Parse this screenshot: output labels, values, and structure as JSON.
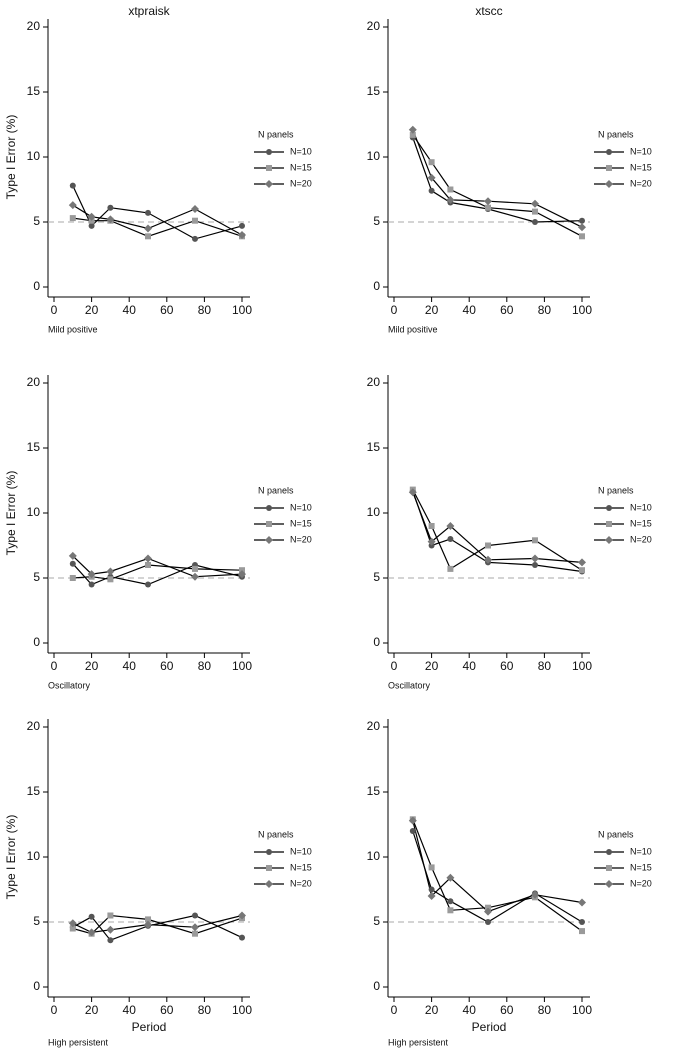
{
  "chart_data": [
    {
      "type": "line",
      "title": "xtpraisk",
      "ylabel": "Type I Error (%)",
      "note": "Mild positive",
      "legend_title": "N panels",
      "x": [
        10,
        20,
        30,
        50,
        75,
        100
      ],
      "xlim": [
        0,
        100
      ],
      "xticks": [
        0,
        20,
        40,
        60,
        80,
        100
      ],
      "ylim": [
        0,
        20
      ],
      "yticks": [
        0,
        5,
        10,
        15,
        20
      ],
      "reference_line": 5,
      "series": [
        {
          "name": "N=10",
          "color": "#555555",
          "marker": "circle",
          "values": [
            7.8,
            4.7,
            6.1,
            5.7,
            3.7,
            4.7
          ]
        },
        {
          "name": "N=15",
          "color": "#9a9a9a",
          "marker": "square",
          "values": [
            5.3,
            5.1,
            5.1,
            3.9,
            5.1,
            3.9
          ]
        },
        {
          "name": "N=20",
          "color": "#777777",
          "marker": "diamond",
          "values": [
            6.3,
            5.4,
            5.2,
            4.5,
            6.0,
            4.0
          ]
        }
      ]
    },
    {
      "type": "line",
      "title": "xtscc",
      "note": "Mild positive",
      "legend_title": "N panels",
      "x": [
        10,
        20,
        30,
        50,
        75,
        100
      ],
      "xlim": [
        0,
        100
      ],
      "xticks": [
        0,
        20,
        40,
        60,
        80,
        100
      ],
      "ylim": [
        0,
        20
      ],
      "yticks": [
        0,
        5,
        10,
        15,
        20
      ],
      "reference_line": 5,
      "series": [
        {
          "name": "N=10",
          "color": "#555555",
          "marker": "circle",
          "values": [
            11.5,
            7.4,
            6.5,
            6.0,
            5.0,
            5.1
          ]
        },
        {
          "name": "N=15",
          "color": "#9a9a9a",
          "marker": "square",
          "values": [
            11.7,
            9.6,
            7.5,
            6.1,
            5.8,
            3.9
          ]
        },
        {
          "name": "N=20",
          "color": "#777777",
          "marker": "diamond",
          "values": [
            12.1,
            8.4,
            6.7,
            6.6,
            6.4,
            4.6
          ]
        }
      ]
    },
    {
      "type": "line",
      "ylabel": "Type I Error (%)",
      "note": "Oscillatory",
      "legend_title": "N panels",
      "x": [
        10,
        20,
        30,
        50,
        75,
        100
      ],
      "xlim": [
        0,
        100
      ],
      "xticks": [
        0,
        20,
        40,
        60,
        80,
        100
      ],
      "ylim": [
        0,
        20
      ],
      "yticks": [
        0,
        5,
        10,
        15,
        20
      ],
      "reference_line": 5,
      "series": [
        {
          "name": "N=10",
          "color": "#555555",
          "marker": "circle",
          "values": [
            6.1,
            4.5,
            5.1,
            4.5,
            6.0,
            5.1
          ]
        },
        {
          "name": "N=15",
          "color": "#9a9a9a",
          "marker": "square",
          "values": [
            5.0,
            5.1,
            4.9,
            6.0,
            5.7,
            5.6
          ]
        },
        {
          "name": "N=20",
          "color": "#777777",
          "marker": "diamond",
          "values": [
            6.7,
            5.3,
            5.5,
            6.5,
            5.1,
            5.3
          ]
        }
      ]
    },
    {
      "type": "line",
      "note": "Oscillatory",
      "legend_title": "N panels",
      "x": [
        10,
        20,
        30,
        50,
        75,
        100
      ],
      "xlim": [
        0,
        100
      ],
      "xticks": [
        0,
        20,
        40,
        60,
        80,
        100
      ],
      "ylim": [
        0,
        20
      ],
      "yticks": [
        0,
        5,
        10,
        15,
        20
      ],
      "reference_line": 5,
      "series": [
        {
          "name": "N=10",
          "color": "#555555",
          "marker": "circle",
          "values": [
            11.7,
            7.5,
            8.0,
            6.2,
            6.0,
            5.5
          ]
        },
        {
          "name": "N=15",
          "color": "#9a9a9a",
          "marker": "square",
          "values": [
            11.8,
            9.0,
            5.7,
            7.5,
            7.9,
            5.6
          ]
        },
        {
          "name": "N=20",
          "color": "#777777",
          "marker": "diamond",
          "values": [
            11.6,
            7.8,
            9.0,
            6.4,
            6.5,
            6.2
          ]
        }
      ]
    },
    {
      "type": "line",
      "ylabel": "Type I Error (%)",
      "xlabel": "Period",
      "note": "High persistent",
      "legend_title": "N panels",
      "x": [
        10,
        20,
        30,
        50,
        75,
        100
      ],
      "xlim": [
        0,
        100
      ],
      "xticks": [
        0,
        20,
        40,
        60,
        80,
        100
      ],
      "ylim": [
        0,
        20
      ],
      "yticks": [
        0,
        5,
        10,
        15,
        20
      ],
      "reference_line": 5,
      "series": [
        {
          "name": "N=10",
          "color": "#555555",
          "marker": "circle",
          "values": [
            4.6,
            5.4,
            3.6,
            4.7,
            5.5,
            3.8
          ]
        },
        {
          "name": "N=15",
          "color": "#9a9a9a",
          "marker": "square",
          "values": [
            4.5,
            4.1,
            5.5,
            5.2,
            4.1,
            5.3
          ]
        },
        {
          "name": "N=20",
          "color": "#777777",
          "marker": "diamond",
          "values": [
            4.9,
            4.2,
            4.4,
            4.8,
            4.6,
            5.5
          ]
        }
      ]
    },
    {
      "type": "line",
      "xlabel": "Period",
      "note": "High persistent",
      "legend_title": "N panels",
      "x": [
        10,
        20,
        30,
        50,
        75,
        100
      ],
      "xlim": [
        0,
        100
      ],
      "xticks": [
        0,
        20,
        40,
        60,
        80,
        100
      ],
      "ylim": [
        0,
        20
      ],
      "yticks": [
        0,
        5,
        10,
        15,
        20
      ],
      "reference_line": 5,
      "series": [
        {
          "name": "N=10",
          "color": "#555555",
          "marker": "circle",
          "values": [
            12.0,
            7.5,
            6.6,
            5.0,
            7.2,
            5.0
          ]
        },
        {
          "name": "N=15",
          "color": "#9a9a9a",
          "marker": "square",
          "values": [
            12.9,
            9.2,
            5.9,
            6.1,
            6.9,
            4.3
          ]
        },
        {
          "name": "N=20",
          "color": "#777777",
          "marker": "diamond",
          "values": [
            12.8,
            7.0,
            8.4,
            5.8,
            7.1,
            6.5
          ]
        }
      ]
    }
  ]
}
